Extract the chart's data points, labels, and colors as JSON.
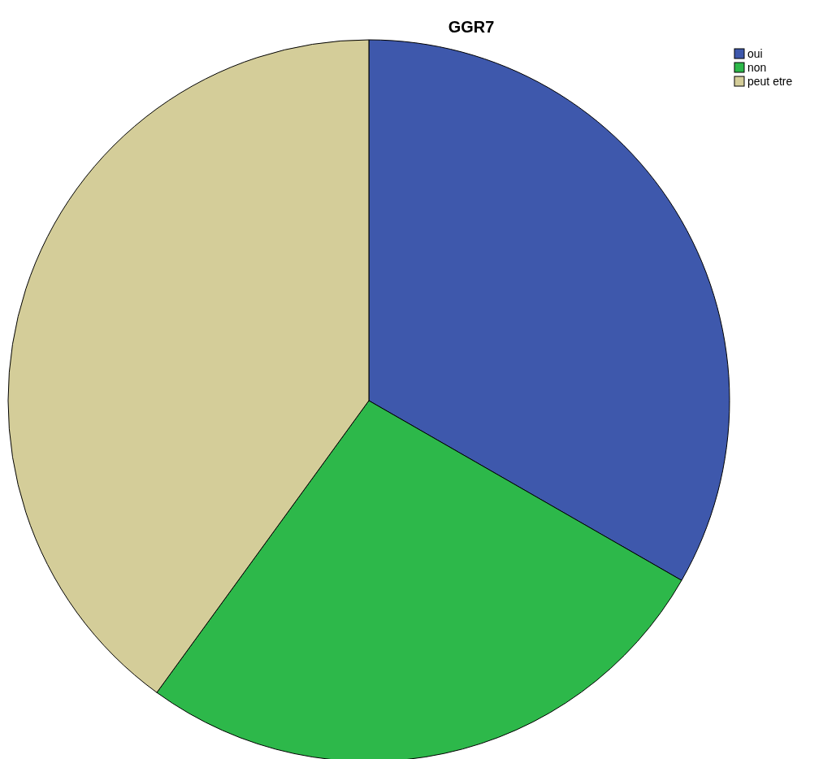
{
  "chart_data": {
    "type": "pie",
    "title": "GGR7",
    "categories": [
      "oui",
      "non",
      "peut etre"
    ],
    "values": [
      33.3,
      26.7,
      40
    ],
    "colors": [
      "#3e58ac",
      "#2db84a",
      "#d4cd99"
    ],
    "legend": "top right"
  }
}
